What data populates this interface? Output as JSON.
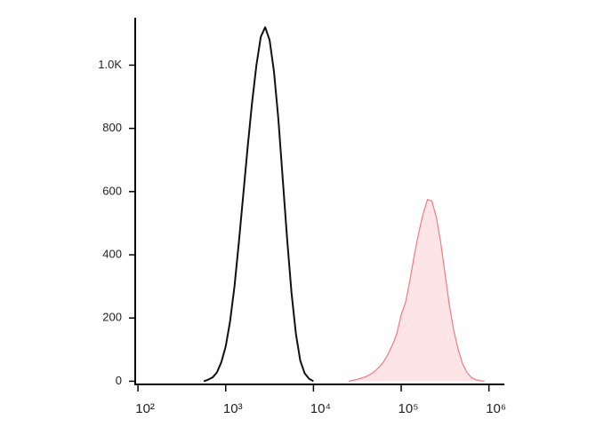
{
  "chart_data": {
    "type": "line",
    "xscale": "log",
    "xlim": [
      93,
      1500000
    ],
    "ylim": [
      -10,
      1150
    ],
    "xticks": [
      {
        "value": 100,
        "label": "10²"
      },
      {
        "value": 1000,
        "label": "10³"
      },
      {
        "value": 10000,
        "label": "10⁴"
      },
      {
        "value": 100000,
        "label": "10⁵"
      },
      {
        "value": 1000000,
        "label": "10⁶"
      }
    ],
    "yticks": [
      0,
      200,
      400,
      600,
      800,
      {
        "value": 1000,
        "label": "1.0K"
      }
    ],
    "series": [
      {
        "color": "#111111",
        "fill": null,
        "x": [
          562,
          631,
          708,
          794,
          891,
          1000,
          1122,
          1259,
          1413,
          1585,
          1778,
          1995,
          2239,
          2512,
          2818,
          3162,
          3548,
          3981,
          4467,
          5012,
          5623,
          6310,
          7079,
          7943,
          8913,
          10000
        ],
        "values": [
          0,
          5,
          12,
          28,
          60,
          110,
          190,
          300,
          440,
          590,
          740,
          880,
          1000,
          1090,
          1120,
          1080,
          980,
          830,
          640,
          450,
          280,
          150,
          65,
          25,
          8,
          0
        ]
      },
      {
        "color": "#f07a84",
        "fill": "#fde4e6",
        "x": [
          25119,
          28184,
          31623,
          35481,
          39811,
          44668,
          50119,
          56234,
          63096,
          70795,
          79433,
          89125,
          100000,
          112202,
          125893,
          141254,
          158489,
          177828,
          199526,
          223872,
          251189,
          281838,
          316228,
          354813,
          398107,
          446684,
          501187,
          562341,
          630957,
          707946,
          794328,
          891251
        ],
        "values": [
          0,
          3,
          6,
          10,
          15,
          22,
          32,
          45,
          62,
          85,
          115,
          150,
          210,
          250,
          320,
          400,
          470,
          530,
          575,
          570,
          520,
          440,
          340,
          240,
          160,
          100,
          55,
          28,
          12,
          5,
          2,
          0
        ]
      }
    ]
  }
}
